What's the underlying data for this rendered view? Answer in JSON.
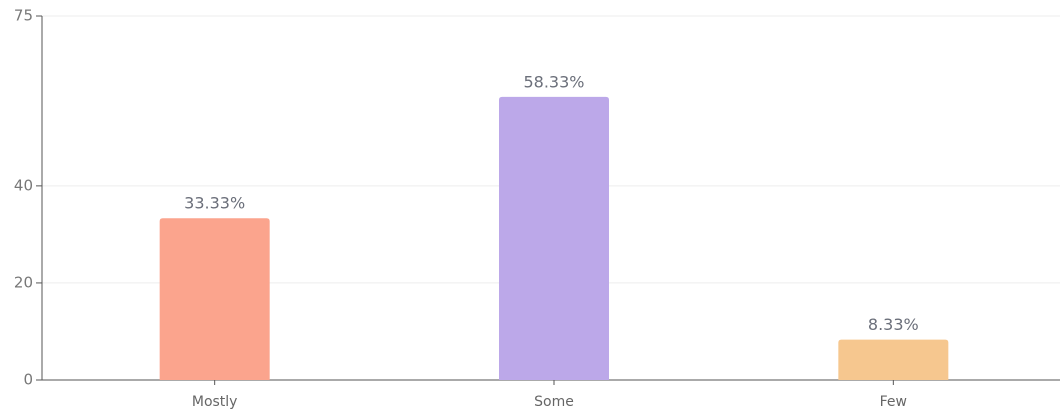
{
  "chart_data": {
    "type": "bar",
    "categories": [
      "Mostly",
      "Some",
      "Few"
    ],
    "values": [
      33.33,
      58.33,
      8.33
    ],
    "value_labels": [
      "33.33%",
      "58.33%",
      "8.33%"
    ],
    "colors": [
      "#fba48d",
      "#bca8e9",
      "#f6c78f"
    ],
    "ylim": [
      0,
      75
    ],
    "yticks": [
      0,
      20,
      40,
      75
    ],
    "grid": true
  }
}
